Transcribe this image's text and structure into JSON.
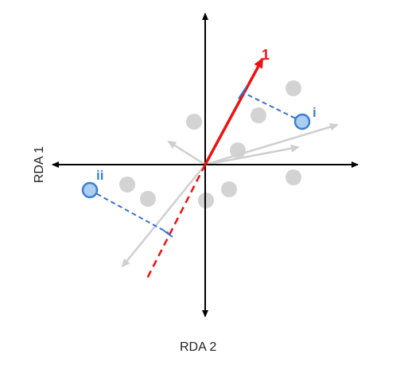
{
  "axes": {
    "vertical_label": "RDA 1",
    "horizontal_label": "RDA 2"
  },
  "vector_1": {
    "label": "1",
    "color": "#ee1111"
  },
  "points": {
    "i": {
      "label": "i"
    },
    "ii": {
      "label": "ii"
    },
    "color": "#3a7fd5",
    "fill": "#aecdf2"
  },
  "colors": {
    "axis": "#000000",
    "grey_points": "#d3d3d3",
    "grey_arrows": "#cfcfcf",
    "projection": "#3a6fd0"
  }
}
